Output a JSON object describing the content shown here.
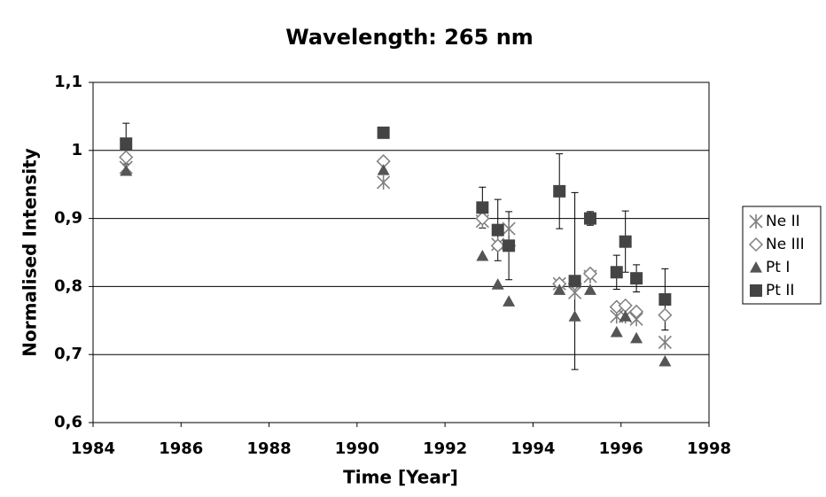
{
  "chart_data": {
    "type": "scatter",
    "title": "Wavelength: 265 nm",
    "x_label": "Time [Year]",
    "y_label": "Normalised Intensity",
    "x": [
      1984.75,
      1990.6,
      1992.85,
      1993.2,
      1993.45,
      1994.6,
      1994.95,
      1995.3,
      1995.9,
      1996.1,
      1996.35,
      1997
    ],
    "series": [
      {
        "name": "Ne II",
        "color": "#7f7f7f",
        "marker": "asterisk",
        "values": [
          0.975,
          0.953,
          0.896,
          0.862,
          0.885,
          0.804,
          0.791,
          0.815,
          0.756,
          0.756,
          0.752,
          0.718
        ]
      },
      {
        "name": "Ne III",
        "color": "#7f7f7f",
        "marker": "diamond",
        "values": [
          0.99,
          0.984,
          0.9,
          0.86,
          0.86,
          0.804,
          0.804,
          0.819,
          0.77,
          0.772,
          0.763,
          0.758
        ]
      },
      {
        "name": "Pt I",
        "color": "#555555",
        "marker": "triangle",
        "values": [
          0.97,
          0.971,
          0.845,
          0.803,
          0.778,
          0.795,
          0.756,
          0.795,
          0.733,
          0.756,
          0.724,
          0.69
        ]
      },
      {
        "name": "Pt II",
        "color": "#444444",
        "marker": "square",
        "values": [
          1.01,
          1.026,
          0.916,
          0.883,
          0.86,
          0.94,
          0.808,
          0.9,
          0.821,
          0.866,
          0.812,
          0.781
        ],
        "errors": [
          0.03,
          0.005,
          0.03,
          0.045,
          0.05,
          0.055,
          0.13,
          0.01,
          0.025,
          0.045,
          0.02,
          0.045
        ]
      }
    ],
    "xlim": [
      1984,
      1998
    ],
    "xticks": [
      1984,
      1986,
      1988,
      1990,
      1992,
      1994,
      1996,
      1998
    ],
    "ylim": [
      0.6,
      1.1
    ],
    "yticks": [
      {
        "value": 0.6,
        "label": "0,6"
      },
      {
        "value": 0.7,
        "label": "0,7"
      },
      {
        "value": 0.8,
        "label": "0,8"
      },
      {
        "value": 0.9,
        "label": "0,9"
      },
      1,
      {
        "value": 1.1,
        "label": "1,1"
      }
    ],
    "grid": true,
    "legend": "right"
  }
}
